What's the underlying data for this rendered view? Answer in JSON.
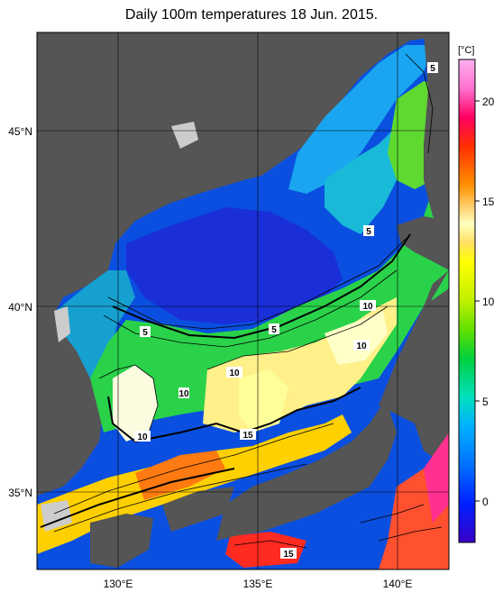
{
  "title": "Daily 100m temperatures 18 Jun. 2015.",
  "axes": {
    "lat_labels": [
      "45°N",
      "40°N",
      "35°N"
    ],
    "lon_labels": [
      "130°E",
      "135°E",
      "140°E"
    ]
  },
  "colorbar": {
    "unit": "[°C]",
    "ticks": [
      "20",
      "15",
      "10",
      "5",
      "0"
    ],
    "range": [
      -2,
      22
    ],
    "colors": [
      "#3a00c8",
      "#0020ff",
      "#0070ff",
      "#00b0ff",
      "#00e0c0",
      "#00d040",
      "#60e000",
      "#c0f000",
      "#ffff00",
      "#ffe060",
      "#ffffc0",
      "#ff9000",
      "#ff3000",
      "#ff0060",
      "#ff70d0",
      "#ffb0f0"
    ]
  },
  "contour_labels": [
    "5",
    "5",
    "5",
    "5",
    "10",
    "10",
    "10",
    "10",
    "10",
    "15"
  ],
  "colors": {
    "land": "#555555",
    "ice_gray": "#cccccc"
  }
}
